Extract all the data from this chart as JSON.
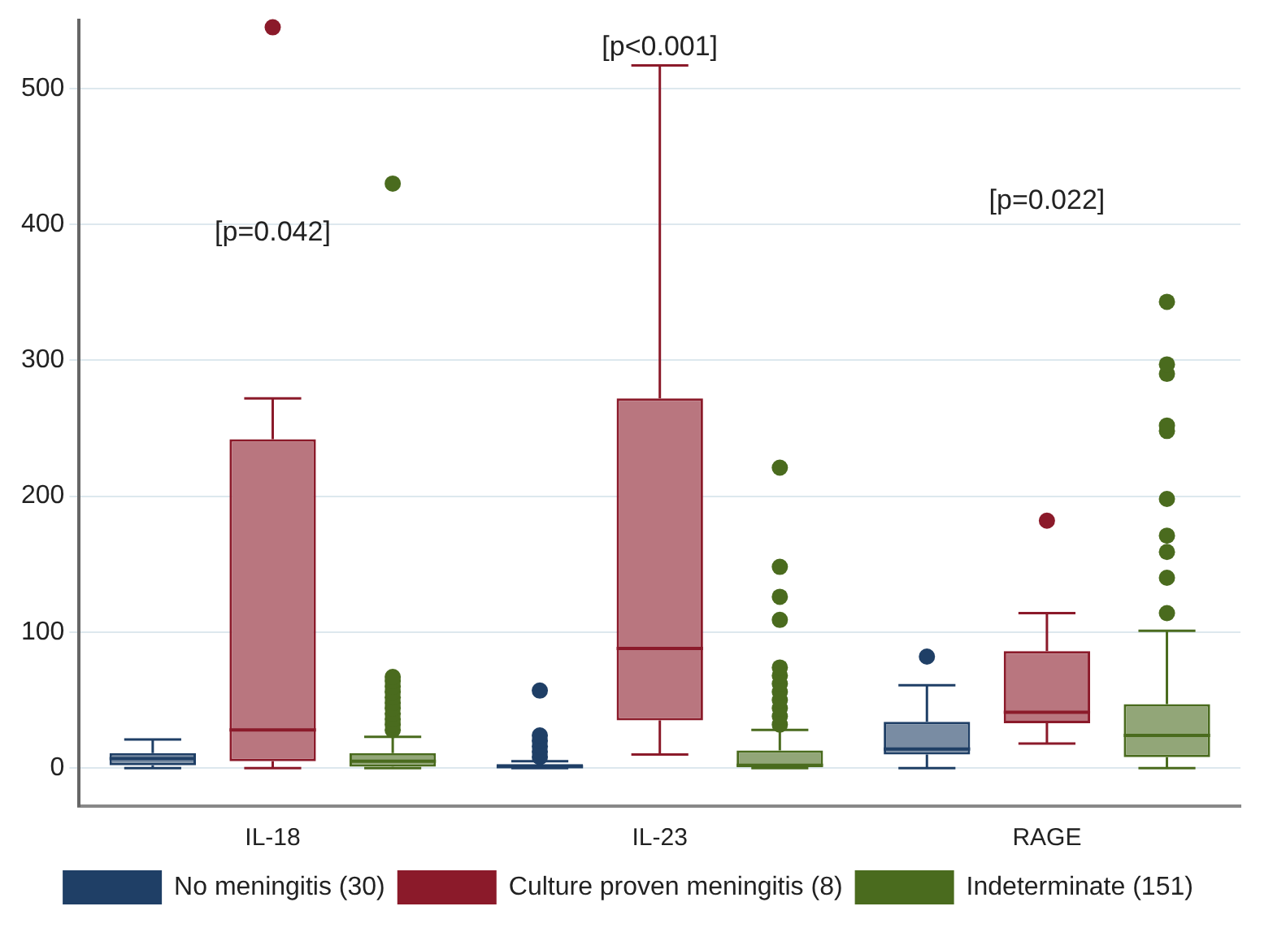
{
  "chart_data": {
    "type": "box",
    "categories": [
      "IL-18",
      "IL-23",
      "RAGE"
    ],
    "series": [
      {
        "name": "No meningitis (30)",
        "color": "#1f3f66",
        "boxes": [
          {
            "low": 0,
            "q1": 2,
            "median": 7,
            "q3": 11,
            "high": 21
          },
          {
            "low": 0,
            "q1": 0,
            "median": 1,
            "q3": 3,
            "high": 5,
            "outliers": [
              8,
              12,
              16,
              20,
              24,
              57
            ]
          },
          {
            "low": 0,
            "q1": 10,
            "median": 14,
            "q3": 34,
            "high": 61,
            "outliers": [
              82
            ]
          }
        ]
      },
      {
        "name": "Culture proven meningitis (8)",
        "color": "#8b1a2a",
        "boxes": [
          {
            "low": 0,
            "q1": 5,
            "median": 28,
            "q3": 242,
            "high": 272,
            "outliers": [
              545
            ]
          },
          {
            "low": 10,
            "q1": 35,
            "median": 88,
            "q3": 272,
            "high": 517
          },
          {
            "low": 18,
            "q1": 33,
            "median": 41,
            "q3": 86,
            "high": 114,
            "outliers": [
              182
            ]
          }
        ]
      },
      {
        "name": "Indeterminate (151)",
        "color": "#4a6b1e",
        "boxes": [
          {
            "low": 0,
            "q1": 1,
            "median": 5,
            "q3": 11,
            "high": 23,
            "outliers": [
              28,
              32,
              36,
              40,
              44,
              48,
              52,
              56,
              60,
              64,
              67,
              430
            ]
          },
          {
            "low": 0,
            "q1": 0,
            "median": 2,
            "q3": 13,
            "high": 28,
            "outliers": [
              32,
              38,
              44,
              50,
              56,
              62,
              68,
              74,
              109,
              126,
              148,
              221
            ]
          },
          {
            "low": 0,
            "q1": 8,
            "median": 24,
            "q3": 47,
            "high": 101,
            "outliers": [
              114,
              140,
              159,
              171,
              198,
              248,
              252,
              290,
              297,
              343
            ]
          }
        ]
      }
    ],
    "ylim": [
      -28,
      550
    ],
    "yticks": [
      0,
      100,
      200,
      300,
      400,
      500
    ],
    "grid": "y",
    "legend": "bottom",
    "annotations": [
      "[p=0.042]",
      "[p<0.001]",
      "[p=0.022]"
    ]
  }
}
